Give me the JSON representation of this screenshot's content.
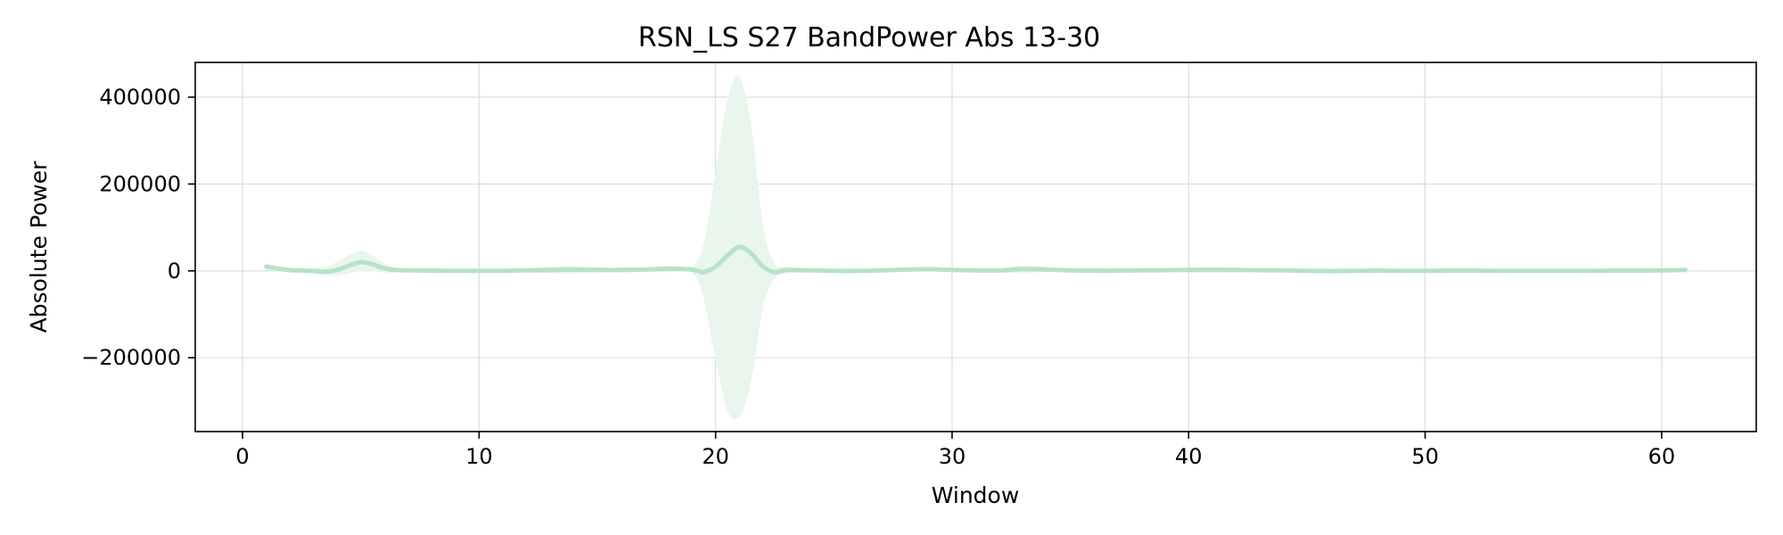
{
  "chart_data": {
    "type": "area",
    "title": "RSN_LS S27 BandPower Abs 13-30",
    "xlabel": "Window",
    "ylabel": "Absolute Power",
    "xlim": [
      -2,
      64
    ],
    "ylim": [
      -370000,
      480000
    ],
    "x_ticks": [
      0,
      10,
      20,
      30,
      40,
      50,
      60
    ],
    "x_tick_labels": [
      "0",
      "10",
      "20",
      "30",
      "40",
      "50",
      "60"
    ],
    "y_ticks": [
      -200000,
      0,
      200000,
      400000
    ],
    "y_tick_labels": [
      "−200000",
      "0",
      "200000",
      "400000"
    ],
    "grid": true,
    "line_color": "#b7e2c8",
    "band_color": "#e8f6ee",
    "series": [
      {
        "x": [
          1,
          1.5,
          2,
          2.5,
          3,
          3.5,
          4,
          4.5,
          5,
          5.5,
          6,
          6.5,
          7,
          8,
          9,
          10,
          11,
          12,
          13,
          14,
          15,
          16,
          17,
          18,
          19,
          19.5,
          20,
          20.5,
          21,
          21.5,
          22,
          22.5,
          23,
          24,
          25,
          26,
          27,
          28,
          29,
          30,
          31,
          32,
          33,
          34,
          35,
          36,
          37,
          38,
          39,
          40,
          41,
          42,
          43,
          44,
          45,
          46,
          47,
          48,
          49,
          50,
          51,
          52,
          53,
          54,
          55,
          56,
          57,
          58,
          59,
          60,
          61
        ],
        "mean": [
          10000,
          5000,
          2000,
          1000,
          0,
          -2000,
          2000,
          12000,
          20000,
          15000,
          6000,
          2000,
          1000,
          500,
          0,
          0,
          0,
          1000,
          2000,
          3000,
          2000,
          2000,
          3000,
          5000,
          3000,
          -3000,
          10000,
          35000,
          55000,
          40000,
          10000,
          -3000,
          2000,
          1000,
          0,
          0,
          1000,
          3000,
          4000,
          2000,
          1000,
          1000,
          4000,
          3000,
          1000,
          500,
          500,
          1000,
          1500,
          2000,
          2500,
          2000,
          1500,
          1000,
          0,
          -500,
          0,
          500,
          0,
          0,
          500,
          500,
          0,
          0,
          0,
          0,
          0,
          500,
          500,
          1000,
          2000
        ],
        "lower": [
          2000,
          0,
          -3000,
          -5000,
          -6000,
          -8000,
          -10000,
          -5000,
          0,
          0,
          -3000,
          -2000,
          -1000,
          -1000,
          -1000,
          -1000,
          -2000,
          -3000,
          -4000,
          -5000,
          -3000,
          -2000,
          -2000,
          -2000,
          -3000,
          -60000,
          -200000,
          -320000,
          -335000,
          -250000,
          -80000,
          -15000,
          -5000,
          -2000,
          -2000,
          -2000,
          -2000,
          -1000,
          -500,
          -1000,
          -2000,
          -3000,
          -3000,
          -2000,
          -1000,
          -1000,
          -1000,
          -1000,
          -1000,
          -2000,
          -3000,
          -3000,
          -2000,
          -1000,
          -2000,
          -2000,
          -2000,
          -1500,
          -1500,
          -1500,
          -1500,
          -1500,
          -1500,
          -1500,
          -1500,
          -1500,
          -1500,
          -1000,
          -1000,
          -1000,
          -500
        ],
        "upper": [
          15000,
          10000,
          6000,
          4000,
          4000,
          8000,
          20000,
          35000,
          45000,
          35000,
          15000,
          6000,
          3000,
          2000,
          1500,
          1500,
          2500,
          5000,
          9000,
          10000,
          7000,
          5000,
          6000,
          10000,
          9000,
          60000,
          220000,
          390000,
          445000,
          330000,
          100000,
          15000,
          8000,
          4000,
          2000,
          2000,
          4000,
          7000,
          8000,
          5000,
          4000,
          5000,
          11000,
          8000,
          3000,
          2000,
          2000,
          3000,
          4000,
          6000,
          7000,
          6000,
          5000,
          3000,
          2000,
          1500,
          2000,
          2500,
          1500,
          1500,
          2500,
          2500,
          1500,
          1500,
          1500,
          1500,
          1500,
          2000,
          2000,
          3000,
          4500
        ]
      }
    ]
  }
}
